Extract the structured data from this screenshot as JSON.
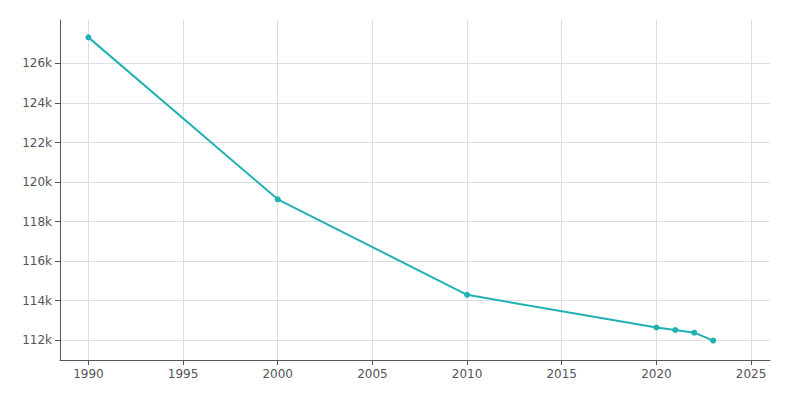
{
  "chart_data": {
    "type": "line",
    "x": [
      1990,
      2000,
      2010,
      2020,
      2021,
      2022,
      2023
    ],
    "values": [
      127321,
      119128,
      114297,
      112644,
      112519,
      112383,
      111983
    ],
    "color": "#20b2b2",
    "marker": "circle",
    "xlim": [
      1988.5,
      2026
    ],
    "ylim": [
      111000,
      128200
    ],
    "xticks": [
      1990,
      1995,
      2000,
      2005,
      2010,
      2015,
      2020,
      2025
    ],
    "yticks": [
      {
        "value": 112000,
        "label": "112k"
      },
      {
        "value": 114000,
        "label": "114k"
      },
      {
        "value": 116000,
        "label": "116k"
      },
      {
        "value": 118000,
        "label": "118k"
      },
      {
        "value": 120000,
        "label": "120k"
      },
      {
        "value": 122000,
        "label": "122k"
      },
      {
        "value": 124000,
        "label": "124k"
      },
      {
        "value": 126000,
        "label": "126k"
      }
    ],
    "grid": true
  }
}
